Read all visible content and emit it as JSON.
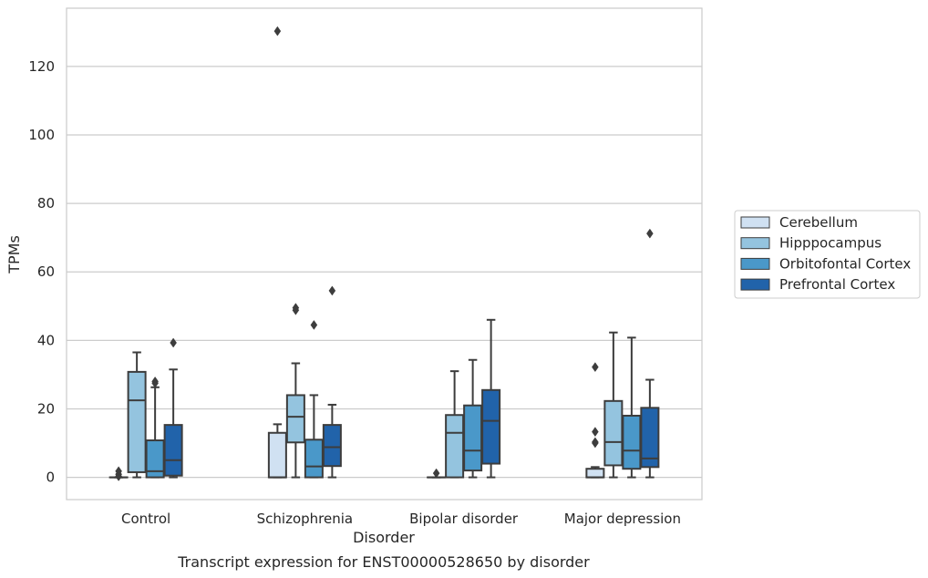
{
  "caption": "Transcript expression for ENST00000528650 by disorder",
  "chart_data": {
    "type": "box",
    "xlabel": "Disorder",
    "ylabel": "TPMs",
    "ylim": [
      -6.5,
      137
    ],
    "yticks": [
      0,
      20,
      40,
      60,
      80,
      100,
      120
    ],
    "grid": true,
    "legend_position": "right",
    "categories": [
      "Control",
      "Schizophrenia",
      "Bipolar disorder",
      "Major depression"
    ],
    "series": [
      {
        "name": "Cerebellum",
        "color": "#d0e1f2",
        "boxes": [
          {
            "q1": 0,
            "median": 0,
            "q3": 0,
            "whisker_low": 0,
            "whisker_high": 0,
            "outliers": [
              0.3,
              0.9,
              1.8
            ]
          },
          {
            "q1": 0,
            "median": 0,
            "q3": 13,
            "whisker_low": 0,
            "whisker_high": 15.5,
            "outliers": [
              130.3
            ]
          },
          {
            "q1": 0,
            "median": 0,
            "q3": 0,
            "whisker_low": 0,
            "whisker_high": 0,
            "outliers": [
              1.2
            ]
          },
          {
            "q1": 0,
            "median": 0,
            "q3": 2.5,
            "whisker_low": 0,
            "whisker_high": 3,
            "outliers": [
              10,
              10.3,
              13.3,
              32.2
            ]
          }
        ]
      },
      {
        "name": "Hipppocampus",
        "color": "#94c4df",
        "boxes": [
          {
            "q1": 1.5,
            "median": 22.5,
            "q3": 30.8,
            "whisker_low": 0,
            "whisker_high": 36.5,
            "outliers": []
          },
          {
            "q1": 10.2,
            "median": 17.7,
            "q3": 24,
            "whisker_low": 0,
            "whisker_high": 33.3,
            "outliers": [
              48.8,
              49.5
            ]
          },
          {
            "q1": 0,
            "median": 13,
            "q3": 18.2,
            "whisker_low": 0,
            "whisker_high": 31,
            "outliers": []
          },
          {
            "q1": 3.5,
            "median": 10.3,
            "q3": 22.3,
            "whisker_low": 0,
            "whisker_high": 42.3,
            "outliers": []
          }
        ]
      },
      {
        "name": "Orbitofontal Cortex",
        "color": "#4a98c9",
        "boxes": [
          {
            "q1": 0,
            "median": 1.8,
            "q3": 10.8,
            "whisker_low": 0,
            "whisker_high": 26.3,
            "outliers": [
              27.5,
              28
            ]
          },
          {
            "q1": 0,
            "median": 3.2,
            "q3": 11,
            "whisker_low": 0,
            "whisker_high": 24,
            "outliers": [
              44.5
            ]
          },
          {
            "q1": 2,
            "median": 7.8,
            "q3": 21,
            "whisker_low": 0,
            "whisker_high": 34.3,
            "outliers": []
          },
          {
            "q1": 2.5,
            "median": 7.8,
            "q3": 18,
            "whisker_low": 0,
            "whisker_high": 40.8,
            "outliers": []
          }
        ]
      },
      {
        "name": "Prefrontal Cortex",
        "color": "#2163aa",
        "boxes": [
          {
            "q1": 0.5,
            "median": 5,
            "q3": 15.3,
            "whisker_low": 0,
            "whisker_high": 31.5,
            "outliers": [
              39.3
            ]
          },
          {
            "q1": 3.3,
            "median": 8.8,
            "q3": 15.3,
            "whisker_low": 0,
            "whisker_high": 21.2,
            "outliers": [
              54.5
            ]
          },
          {
            "q1": 4,
            "median": 16.5,
            "q3": 25.5,
            "whisker_low": 0,
            "whisker_high": 46,
            "outliers": []
          },
          {
            "q1": 3,
            "median": 5.5,
            "q3": 20.3,
            "whisker_low": 0,
            "whisker_high": 28.5,
            "outliers": [
              71.2
            ]
          }
        ]
      }
    ]
  }
}
